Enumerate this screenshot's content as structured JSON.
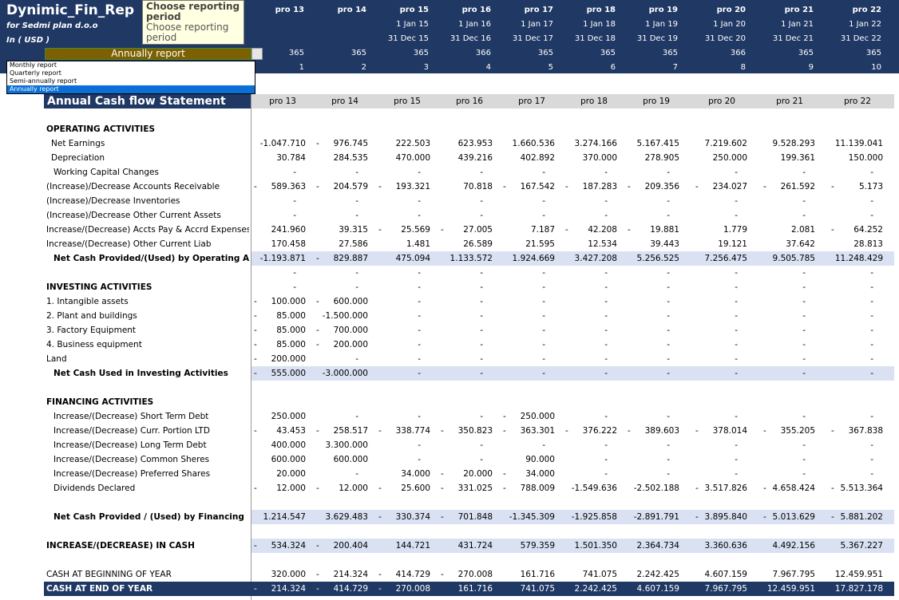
{
  "app": {
    "title": "Dynimic_Fin_Rep",
    "company": "for Sedmi plan d.o.o",
    "currency": "In ( USD )"
  },
  "period_select": {
    "value": "Annually report",
    "options": [
      "Monthly report",
      "Quarterly report",
      "Semi-annually report",
      "Annually report"
    ],
    "selected_index": 3
  },
  "tooltip": {
    "title": "Choose reporting period",
    "text": "Choose reporting period"
  },
  "header": {
    "periods": [
      "pro 13",
      "pro 14",
      "pro 15",
      "pro 16",
      "pro 17",
      "pro 18",
      "pro 19",
      "pro 20",
      "pro 21",
      "pro 22"
    ],
    "start_dates": [
      "",
      "",
      "1 Jan 15",
      "1 Jan 16",
      "1 Jan 17",
      "1 Jan 18",
      "1 Jan 19",
      "1 Jan 20",
      "1 Jan 21",
      "1 Jan 22"
    ],
    "end_dates": [
      "",
      "",
      "31 Dec 15",
      "31 Dec 16",
      "31 Dec 17",
      "31 Dec 18",
      "31 Dec 19",
      "31 Dec 20",
      "31 Dec 21",
      "31 Dec 22"
    ],
    "days": [
      "365",
      "365",
      "365",
      "366",
      "365",
      "365",
      "365",
      "366",
      "365",
      "365"
    ],
    "index": [
      "1",
      "2",
      "3",
      "4",
      "5",
      "6",
      "7",
      "8",
      "9",
      "10"
    ]
  },
  "statement": {
    "title": "Annual Cash flow Statement",
    "columns": [
      "pro 13",
      "pro 14",
      "pro 15",
      "pro 16",
      "pro 17",
      "pro 18",
      "pro 19",
      "pro 20",
      "pro 21",
      "pro 22"
    ]
  },
  "colors": {
    "header_bg": "#203864",
    "highlight": "#d9e1f2",
    "select_bg": "#7f6000",
    "grey": "#d9d9d9"
  },
  "rows": [
    {
      "y": 162,
      "label": "OPERATING ACTIVITIES",
      "bold": true,
      "indent": 0,
      "values": []
    },
    {
      "y": 180,
      "label": "Net Earnings",
      "indent": 1,
      "values": [
        "-1.047.710",
        "- 976.745",
        "222.503",
        "623.953",
        "1.660.536",
        "3.274.166",
        "5.167.415",
        "7.219.602",
        "9.528.293",
        "11.139.041"
      ]
    },
    {
      "y": 198,
      "label": "Depreciation",
      "indent": 1,
      "values": [
        "30.784",
        "284.535",
        "470.000",
        "439.216",
        "402.892",
        "370.000",
        "278.905",
        "250.000",
        "199.361",
        "150.000"
      ]
    },
    {
      "y": 216,
      "label": "Working Capital Changes",
      "indent": 2,
      "values": [
        "-",
        "-",
        "-",
        "-",
        "-",
        "-",
        "-",
        "-",
        "-",
        "-"
      ]
    },
    {
      "y": 234,
      "label": "(Increase)/Decrease Accounts Receivable",
      "indent": 0,
      "values": [
        "- 589.363",
        "- 204.579",
        "- 193.321",
        "70.818",
        "- 167.542",
        "- 187.283",
        "- 209.356",
        "- 234.027",
        "- 261.592",
        "- 5.173"
      ]
    },
    {
      "y": 252,
      "label": "(Increase)/Decrease Inventories",
      "indent": 0,
      "values": [
        "-",
        "-",
        "-",
        "-",
        "-",
        "-",
        "-",
        "-",
        "-",
        "-"
      ]
    },
    {
      "y": 270,
      "label": "(Increase)/Decrease Other Current Assets",
      "indent": 0,
      "values": [
        "-",
        "-",
        "-",
        "-",
        "-",
        "-",
        "-",
        "-",
        "-",
        "-"
      ]
    },
    {
      "y": 288,
      "label": "Increase/(Decrease) Accts Pay & Accrd Expenses",
      "indent": 0,
      "values": [
        "241.960",
        "39.315",
        "- 25.569",
        "- 27.005",
        "7.187",
        "- 42.208",
        "- 19.881",
        "1.779",
        "2.081",
        "- 64.252"
      ]
    },
    {
      "y": 306,
      "label": "Increase/(Decrease) Other Current Liab",
      "indent": 0,
      "values": [
        "170.458",
        "27.586",
        "1.481",
        "26.589",
        "21.595",
        "12.534",
        "39.443",
        "19.121",
        "37.642",
        "28.813"
      ]
    },
    {
      "y": 324,
      "label": "Net Cash Provided/(Used) by Operating Activities",
      "bold": true,
      "indent": 2,
      "highlight": true,
      "values": [
        "-1.193.871",
        "- 829.887",
        "475.094",
        "1.133.572",
        "1.924.669",
        "3.427.208",
        "5.256.525",
        "7.256.475",
        "9.505.785",
        "11.248.429"
      ]
    },
    {
      "y": 342,
      "label": "",
      "indent": 0,
      "values": [
        "-",
        "-",
        "-",
        "-",
        "-",
        "-",
        "-",
        "-",
        "-",
        "-"
      ]
    },
    {
      "y": 360,
      "label": "INVESTING ACTIVITIES",
      "bold": true,
      "indent": 0,
      "values": [
        "-",
        "-",
        "-",
        "-",
        "-",
        "-",
        "-",
        "-",
        "-",
        "-"
      ]
    },
    {
      "y": 378,
      "label": "1. Intangible assets",
      "indent": 0,
      "values": [
        "- 100.000",
        "- 600.000",
        "-",
        "-",
        "-",
        "-",
        "-",
        "-",
        "-",
        "-"
      ]
    },
    {
      "y": 396,
      "label": "2. Plant and buildings",
      "indent": 0,
      "values": [
        "- 85.000",
        "-1.500.000",
        "-",
        "-",
        "-",
        "-",
        "-",
        "-",
        "-",
        "-"
      ]
    },
    {
      "y": 414,
      "label": "3. Factory Equipment",
      "indent": 0,
      "values": [
        "- 85.000",
        "- 700.000",
        "-",
        "-",
        "-",
        "-",
        "-",
        "-",
        "-",
        "-"
      ]
    },
    {
      "y": 432,
      "label": "4. Business equipment",
      "indent": 0,
      "values": [
        "- 85.000",
        "- 200.000",
        "-",
        "-",
        "-",
        "-",
        "-",
        "-",
        "-",
        "-"
      ]
    },
    {
      "y": 450,
      "label": "Land",
      "indent": 0,
      "values": [
        "- 200.000",
        "-",
        "-",
        "-",
        "-",
        "-",
        "-",
        "-",
        "-",
        "-"
      ]
    },
    {
      "y": 468,
      "label": "Net Cash Used in Investing Activities",
      "bold": true,
      "indent": 2,
      "highlight": true,
      "values": [
        "- 555.000",
        "-3.000.000",
        "-",
        "-",
        "-",
        "-",
        "-",
        "-",
        "-",
        "-"
      ]
    },
    {
      "y": 504,
      "label": "FINANCING ACTIVITIES",
      "bold": true,
      "indent": 0,
      "values": []
    },
    {
      "y": 522,
      "label": "Increase/(Decrease) Short Term Debt",
      "indent": 2,
      "values": [
        "250.000",
        "-",
        "-",
        "-",
        "- 250.000",
        "-",
        "-",
        "-",
        "-",
        "-"
      ]
    },
    {
      "y": 540,
      "label": "Increase/(Decrease) Curr. Portion LTD",
      "indent": 2,
      "values": [
        "- 43.453",
        "- 258.517",
        "- 338.774",
        "- 350.823",
        "- 363.301",
        "- 376.222",
        "- 389.603",
        "- 378.014",
        "- 355.205",
        "- 367.838"
      ]
    },
    {
      "y": 558,
      "label": "Increase/(Decrease) Long Term Debt",
      "indent": 2,
      "values": [
        "400.000",
        "3.300.000",
        "-",
        "-",
        "-",
        "-",
        "-",
        "-",
        "-",
        "-"
      ]
    },
    {
      "y": 576,
      "label": "Increase/(Decrease) Common Sheres",
      "indent": 2,
      "values": [
        "600.000",
        "600.000",
        "-",
        "-",
        "90.000",
        "-",
        "-",
        "-",
        "-",
        "-"
      ]
    },
    {
      "y": 594,
      "label": "Increase/(Decrease) Preferred Shares",
      "indent": 2,
      "values": [
        "20.000",
        "-",
        "34.000",
        "- 20.000",
        "- 34.000",
        "-",
        "-",
        "-",
        "-",
        "-"
      ]
    },
    {
      "y": 612,
      "label": "Dividends Declared",
      "indent": 2,
      "values": [
        "- 12.000",
        "- 12.000",
        "- 25.600",
        "- 331.025",
        "- 788.009",
        "-1.549.636",
        "-2.502.188",
        "- 3.517.826",
        "- 4.658.424",
        "- 5.513.364"
      ]
    },
    {
      "y": 648,
      "label": "Net Cash Provided / (Used) by Financing",
      "bold": true,
      "indent": 2,
      "highlight": true,
      "values": [
        "1.214.547",
        "3.629.483",
        "- 330.374",
        "- 701.848",
        "-1.345.309",
        "-1.925.858",
        "-2.891.791",
        "- 3.895.840",
        "- 5.013.629",
        "- 5.881.202"
      ]
    },
    {
      "y": 684,
      "label": "INCREASE/(DECREASE) IN CASH",
      "bold": true,
      "indent": 0,
      "highlight": true,
      "values": [
        "- 534.324",
        "- 200.404",
        "144.721",
        "431.724",
        "579.359",
        "1.501.350",
        "2.364.734",
        "3.360.636",
        "4.492.156",
        "5.367.227"
      ]
    },
    {
      "y": 720,
      "label": "CASH AT BEGINNING OF YEAR",
      "indent": 0,
      "values": [
        "320.000",
        "- 214.324",
        "- 414.729",
        "- 270.008",
        "161.716",
        "741.075",
        "2.242.425",
        "4.607.159",
        "7.967.795",
        "12.459.951"
      ]
    },
    {
      "y": 738,
      "label": "CASH AT END OF YEAR",
      "bold": true,
      "indent": 0,
      "dark": true,
      "values": [
        "- 214.324",
        "- 414.729",
        "- 270.008",
        "161.716",
        "741.075",
        "2.242.425",
        "4.607.159",
        "7.967.795",
        "12.459.951",
        "17.827.178"
      ]
    }
  ]
}
